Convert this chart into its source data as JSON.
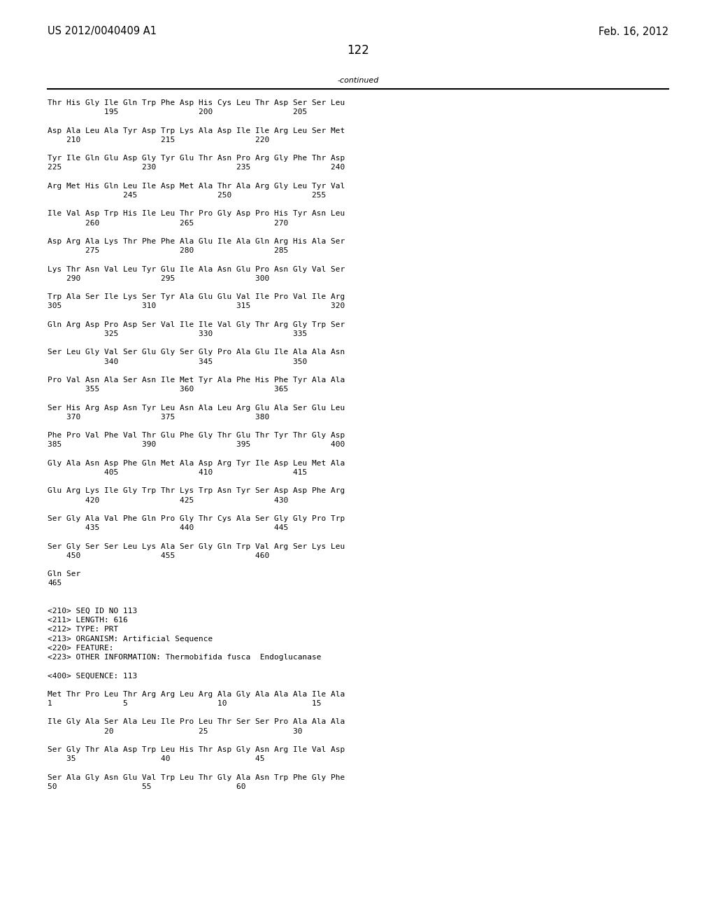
{
  "header_left": "US 2012/0040409 A1",
  "header_right": "Feb. 16, 2012",
  "page_number": "122",
  "continued_label": "-continued",
  "background_color": "#ffffff",
  "text_color": "#000000",
  "font_size": 8.0,
  "header_font_size": 10.5,
  "page_num_font_size": 12,
  "lines": [
    "Thr His Gly Ile Gln Trp Phe Asp His Cys Leu Thr Asp Ser Ser Leu",
    "            195                 200                 205",
    "",
    "Asp Ala Leu Ala Tyr Asp Trp Lys Ala Asp Ile Ile Arg Leu Ser Met",
    "    210                 215                 220",
    "",
    "Tyr Ile Gln Glu Asp Gly Tyr Glu Thr Asn Pro Arg Gly Phe Thr Asp",
    "225                 230                 235                 240",
    "",
    "Arg Met His Gln Leu Ile Asp Met Ala Thr Ala Arg Gly Leu Tyr Val",
    "                245                 250                 255",
    "",
    "Ile Val Asp Trp His Ile Leu Thr Pro Gly Asp Pro His Tyr Asn Leu",
    "        260                 265                 270",
    "",
    "Asp Arg Ala Lys Thr Phe Phe Ala Glu Ile Ala Gln Arg His Ala Ser",
    "        275                 280                 285",
    "",
    "Lys Thr Asn Val Leu Tyr Glu Ile Ala Asn Glu Pro Asn Gly Val Ser",
    "    290                 295                 300",
    "",
    "Trp Ala Ser Ile Lys Ser Tyr Ala Glu Glu Val Ile Pro Val Ile Arg",
    "305                 310                 315                 320",
    "",
    "Gln Arg Asp Pro Asp Ser Val Ile Ile Val Gly Thr Arg Gly Trp Ser",
    "            325                 330                 335",
    "",
    "Ser Leu Gly Val Ser Glu Gly Ser Gly Pro Ala Glu Ile Ala Ala Asn",
    "            340                 345                 350",
    "",
    "Pro Val Asn Ala Ser Asn Ile Met Tyr Ala Phe His Phe Tyr Ala Ala",
    "        355                 360                 365",
    "",
    "Ser His Arg Asp Asn Tyr Leu Asn Ala Leu Arg Glu Ala Ser Glu Leu",
    "    370                 375                 380",
    "",
    "Phe Pro Val Phe Val Thr Glu Phe Gly Thr Glu Thr Tyr Thr Gly Asp",
    "385                 390                 395                 400",
    "",
    "Gly Ala Asn Asp Phe Gln Met Ala Asp Arg Tyr Ile Asp Leu Met Ala",
    "            405                 410                 415",
    "",
    "Glu Arg Lys Ile Gly Trp Thr Lys Trp Asn Tyr Ser Asp Asp Phe Arg",
    "        420                 425                 430",
    "",
    "Ser Gly Ala Val Phe Gln Pro Gly Thr Cys Ala Ser Gly Gly Pro Trp",
    "        435                 440                 445",
    "",
    "Ser Gly Ser Ser Leu Lys Ala Ser Gly Gln Trp Val Arg Ser Lys Leu",
    "    450                 455                 460",
    "",
    "Gln Ser",
    "465",
    "",
    "",
    "<210> SEQ ID NO 113",
    "<211> LENGTH: 616",
    "<212> TYPE: PRT",
    "<213> ORGANISM: Artificial Sequence",
    "<220> FEATURE:",
    "<223> OTHER INFORMATION: Thermobifida fusca  Endoglucanase",
    "",
    "<400> SEQUENCE: 113",
    "",
    "Met Thr Pro Leu Thr Arg Arg Leu Arg Ala Gly Ala Ala Ala Ile Ala",
    "1               5                   10                  15",
    "",
    "Ile Gly Ala Ser Ala Leu Ile Pro Leu Thr Ser Ser Pro Ala Ala Ala",
    "            20                  25                  30",
    "",
    "Ser Gly Thr Ala Asp Trp Leu His Thr Asp Gly Asn Arg Ile Val Asp",
    "    35                  40                  45",
    "",
    "Ser Ala Gly Asn Glu Val Trp Leu Thr Gly Ala Asn Trp Phe Gly Phe",
    "50                  55                  60"
  ]
}
